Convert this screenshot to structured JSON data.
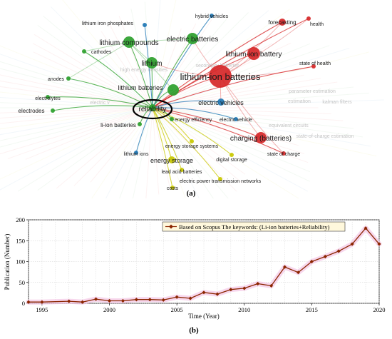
{
  "panel_a_label": "(a)",
  "panel_b_label": "(b)",
  "colors": {
    "green": "#2ca02c",
    "red": "#d62728",
    "blue": "#1f77b4",
    "yellow": "#c8c800",
    "line": "#8b2500",
    "band": "#f4c6e6"
  },
  "network": {
    "nodes": [
      {
        "id": "reliability",
        "label": "reliability",
        "color": "green",
        "size": 5,
        "font": 10
      },
      {
        "id": "lib",
        "label": "lithium-ion batteries",
        "color": "red",
        "size": 16,
        "font": 13
      },
      {
        "id": "libatt",
        "label": "lithium-ion battery",
        "color": "red",
        "size": 9,
        "font": 10
      },
      {
        "id": "charging",
        "label": "charging (batteries)",
        "color": "red",
        "size": 8,
        "font": 10
      },
      {
        "id": "forecasting",
        "label": "forecasting",
        "color": "red",
        "size": 5,
        "font": 8
      },
      {
        "id": "health",
        "label": "health",
        "color": "red",
        "size": 3,
        "font": 7
      },
      {
        "id": "soh",
        "label": "state of health",
        "color": "red",
        "size": 3,
        "font": 7
      },
      {
        "id": "soc",
        "label": "state of charge",
        "color": "red",
        "size": 3,
        "font": 7
      },
      {
        "id": "licomp",
        "label": "lithium compounds",
        "color": "green",
        "size": 8,
        "font": 10
      },
      {
        "id": "eb",
        "label": "electric batteries",
        "color": "green",
        "size": 8,
        "font": 10
      },
      {
        "id": "lithium",
        "label": "lithium",
        "color": "green",
        "size": 8,
        "font": 10
      },
      {
        "id": "libs",
        "label": "lithium batteries",
        "color": "green",
        "size": 8,
        "font": 9
      },
      {
        "id": "cathodes",
        "label": "cathodes",
        "color": "green",
        "size": 3,
        "font": 7
      },
      {
        "id": "anodes",
        "label": "anodes",
        "color": "green",
        "size": 3,
        "font": 7
      },
      {
        "id": "electrolytes",
        "label": "electrolytes",
        "color": "green",
        "size": 3,
        "font": 7
      },
      {
        "id": "electrodes",
        "label": "electrodes",
        "color": "green",
        "size": 3,
        "font": 8
      },
      {
        "id": "liion",
        "label": "li-ion batteries",
        "color": "green",
        "size": 3,
        "font": 8
      },
      {
        "id": "ee",
        "label": "energy efficiency",
        "color": "green",
        "size": 3,
        "font": 7
      },
      {
        "id": "ev",
        "label": "electric vehicles",
        "color": "blue",
        "size": 5,
        "font": 9
      },
      {
        "id": "evh",
        "label": "electric vehicle",
        "color": "blue",
        "size": 3,
        "font": 7
      },
      {
        "id": "hybrid",
        "label": "hybrid vehicles",
        "color": "blue",
        "size": 3,
        "font": 7
      },
      {
        "id": "lip",
        "label": "lithium iron phosphates",
        "color": "blue",
        "size": 3,
        "font": 7
      },
      {
        "id": "liions",
        "label": "lithium ions",
        "color": "blue",
        "size": 3,
        "font": 7
      },
      {
        "id": "es",
        "label": "energy storage",
        "color": "yellow",
        "size": 5,
        "font": 9
      },
      {
        "id": "ess",
        "label": "energy storage systems",
        "color": "yellow",
        "size": 3,
        "font": 7
      },
      {
        "id": "ds",
        "label": "digital storage",
        "color": "yellow",
        "size": 3,
        "font": 7
      },
      {
        "id": "lab",
        "label": "lead acid batteries",
        "color": "yellow",
        "size": 3,
        "font": 7
      },
      {
        "id": "eptn",
        "label": "electric power transmission networks",
        "color": "yellow",
        "size": 3,
        "font": 7
      },
      {
        "id": "costs",
        "label": "costs",
        "color": "yellow",
        "size": 3,
        "font": 7
      }
    ],
    "faint_labels": [
      "parameter estimation",
      "kalman filters",
      "equivalent circuits",
      "state-of-charge estimation",
      "estimation",
      "high energy densities",
      "secondary batteries",
      "electric v"
    ]
  },
  "chart_data": {
    "type": "line",
    "title": "",
    "legend": "Based on Scopus The keywords: (Li-ion batteries+Reliability)",
    "legend_position": "top-right",
    "xlabel": "Time (Year)",
    "ylabel": "Publication (Number)",
    "xlim": [
      1994,
      2020
    ],
    "ylim": [
      0,
      200
    ],
    "xticks": [
      1995,
      2000,
      2005,
      2010,
      2015,
      2020
    ],
    "yticks": [
      0,
      50,
      100,
      150,
      200
    ],
    "grid": true,
    "series": [
      {
        "name": "Based on Scopus The keywords: (Li-ion batteries+Reliability)",
        "x": [
          1994,
          1995,
          1997,
          1998,
          1999,
          2000,
          2001,
          2002,
          2003,
          2004,
          2005,
          2006,
          2007,
          2008,
          2009,
          2010,
          2011,
          2012,
          2013,
          2014,
          2015,
          2016,
          2017,
          2018,
          2019,
          2020
        ],
        "y": [
          3,
          3,
          5,
          3,
          10,
          6,
          6,
          9,
          9,
          8,
          15,
          12,
          26,
          22,
          33,
          36,
          47,
          42,
          87,
          74,
          100,
          112,
          125,
          142,
          180,
          142
        ]
      }
    ]
  }
}
